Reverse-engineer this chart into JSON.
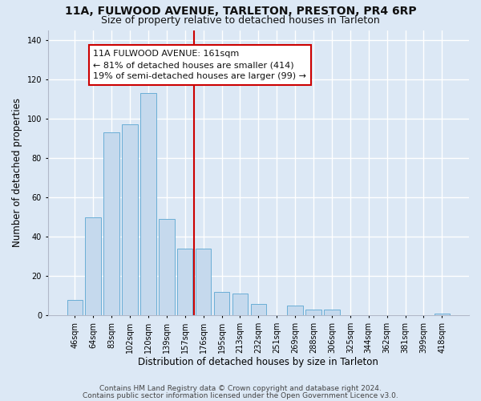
{
  "title1": "11A, FULWOOD AVENUE, TARLETON, PRESTON, PR4 6RP",
  "title2": "Size of property relative to detached houses in Tarleton",
  "xlabel": "Distribution of detached houses by size in Tarleton",
  "ylabel": "Number of detached properties",
  "categories": [
    "46sqm",
    "64sqm",
    "83sqm",
    "102sqm",
    "120sqm",
    "139sqm",
    "157sqm",
    "176sqm",
    "195sqm",
    "213sqm",
    "232sqm",
    "251sqm",
    "269sqm",
    "288sqm",
    "306sqm",
    "325sqm",
    "344sqm",
    "362sqm",
    "381sqm",
    "399sqm",
    "418sqm"
  ],
  "values": [
    8,
    50,
    93,
    97,
    113,
    49,
    34,
    34,
    12,
    11,
    6,
    0,
    5,
    3,
    3,
    0,
    0,
    0,
    0,
    0,
    1
  ],
  "bar_color": "#c5d9ed",
  "bar_edge_color": "#6aaed6",
  "vline_index": 6.5,
  "vline_color": "#cc0000",
  "annotation_title": "11A FULWOOD AVENUE: 161sqm",
  "annotation_line1": "← 81% of detached houses are smaller (414)",
  "annotation_line2": "19% of semi-detached houses are larger (99) →",
  "annotation_box_color": "#ffffff",
  "annotation_border_color": "#cc0000",
  "ylim": [
    0,
    145
  ],
  "yticks": [
    0,
    20,
    40,
    60,
    80,
    100,
    120,
    140
  ],
  "footer1": "Contains HM Land Registry data © Crown copyright and database right 2024.",
  "footer2": "Contains public sector information licensed under the Open Government Licence v3.0.",
  "background_color": "#dce8f5",
  "plot_background": "#dce8f5",
  "grid_color": "#ffffff",
  "title_fontsize": 10,
  "subtitle_fontsize": 9,
  "axis_label_fontsize": 8.5,
  "tick_fontsize": 7,
  "footer_fontsize": 6.5,
  "ann_fontsize": 8
}
